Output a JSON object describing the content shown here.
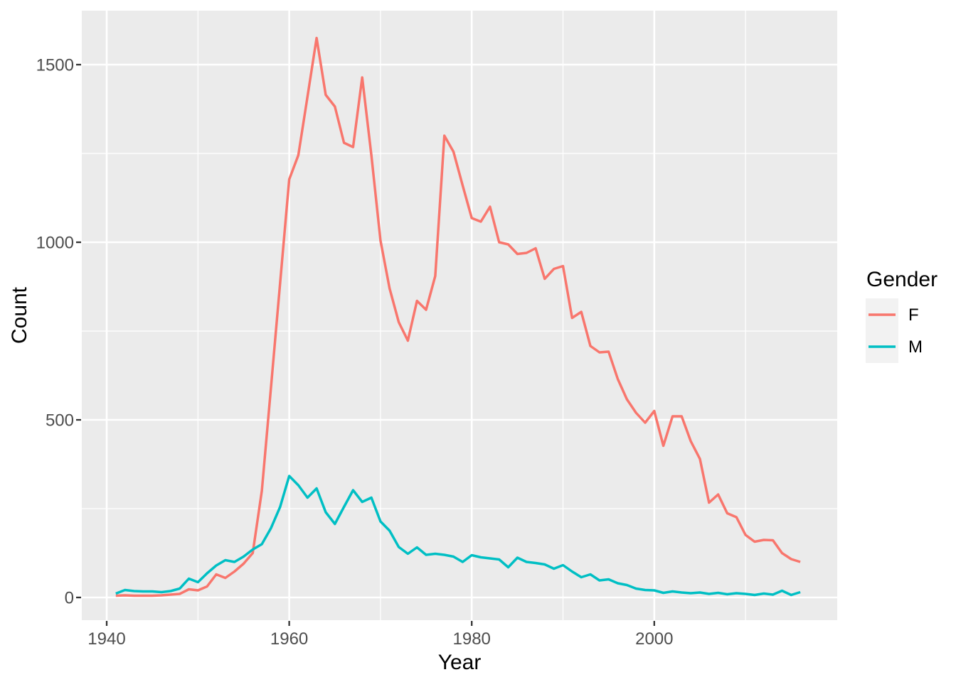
{
  "figure": {
    "background_color": "#FFFFFF",
    "panel_background_color": "#EBEBEB",
    "gridline_color": "#FFFFFF",
    "tick_mark_color": "#333333",
    "axis_text_color": "#4D4D4D",
    "title_text_color": "#000000"
  },
  "legend": {
    "title": "Gender",
    "key_fill": "#F2F2F2",
    "entries": [
      {
        "label": "F",
        "color": "#F8766D"
      },
      {
        "label": "M",
        "color": "#00BFC4"
      }
    ]
  },
  "chart_data": {
    "type": "line",
    "title": "",
    "xlabel": "Year",
    "ylabel": "Count",
    "grid": true,
    "legend_position": "right",
    "xlim": [
      1937.25,
      2019.75
    ],
    "ylim": [
      -64,
      1652
    ],
    "x_ticks": [
      1940,
      1960,
      1980,
      2000
    ],
    "x_minor_ticks": [
      1950,
      1970,
      1990,
      2010
    ],
    "y_ticks": [
      0,
      500,
      1000,
      1500
    ],
    "y_minor_ticks": [
      250,
      750,
      1250
    ],
    "x": [
      1941,
      1942,
      1943,
      1944,
      1945,
      1946,
      1947,
      1948,
      1949,
      1950,
      1951,
      1952,
      1953,
      1954,
      1955,
      1956,
      1957,
      1958,
      1959,
      1960,
      1961,
      1962,
      1963,
      1964,
      1965,
      1966,
      1967,
      1968,
      1969,
      1970,
      1971,
      1972,
      1973,
      1974,
      1975,
      1976,
      1977,
      1978,
      1979,
      1980,
      1981,
      1982,
      1983,
      1984,
      1985,
      1986,
      1987,
      1988,
      1989,
      1990,
      1991,
      1992,
      1993,
      1994,
      1995,
      1996,
      1997,
      1998,
      1999,
      2000,
      2001,
      2002,
      2003,
      2004,
      2005,
      2006,
      2007,
      2008,
      2009,
      2010,
      2011,
      2012,
      2013,
      2014,
      2015,
      2016
    ],
    "series": [
      {
        "name": "F",
        "color": "#F8766D",
        "values": [
          5,
          6,
          5,
          5,
          5,
          6,
          8,
          10,
          23,
          20,
          31,
          65,
          55,
          73,
          95,
          125,
          300,
          590,
          885,
          1177,
          1245,
          1410,
          1575,
          1415,
          1382,
          1280,
          1268,
          1464,
          1245,
          1005,
          870,
          775,
          723,
          835,
          810,
          905,
          1300,
          1255,
          1160,
          1068,
          1058,
          1100,
          1000,
          994,
          967,
          970,
          983,
          897,
          925,
          933,
          787,
          804,
          708,
          690,
          692,
          615,
          558,
          520,
          492,
          525,
          427,
          510,
          510,
          440,
          390,
          267,
          290,
          237,
          226,
          176,
          157,
          162,
          161,
          125,
          108,
          100
        ]
      },
      {
        "name": "M",
        "color": "#00BFC4",
        "values": [
          11,
          21,
          18,
          17,
          17,
          15,
          18,
          25,
          53,
          43,
          68,
          90,
          105,
          100,
          115,
          135,
          150,
          195,
          255,
          342,
          316,
          281,
          307,
          240,
          207,
          255,
          302,
          269,
          281,
          214,
          188,
          142,
          123,
          141,
          120,
          123,
          120,
          115,
          100,
          119,
          113,
          110,
          107,
          85,
          112,
          100,
          97,
          93,
          81,
          91,
          73,
          57,
          65,
          48,
          51,
          40,
          35,
          25,
          21,
          20,
          13,
          17,
          14,
          12,
          14,
          10,
          13,
          9,
          12,
          10,
          7,
          11,
          8,
          19,
          7,
          15
        ]
      }
    ]
  }
}
